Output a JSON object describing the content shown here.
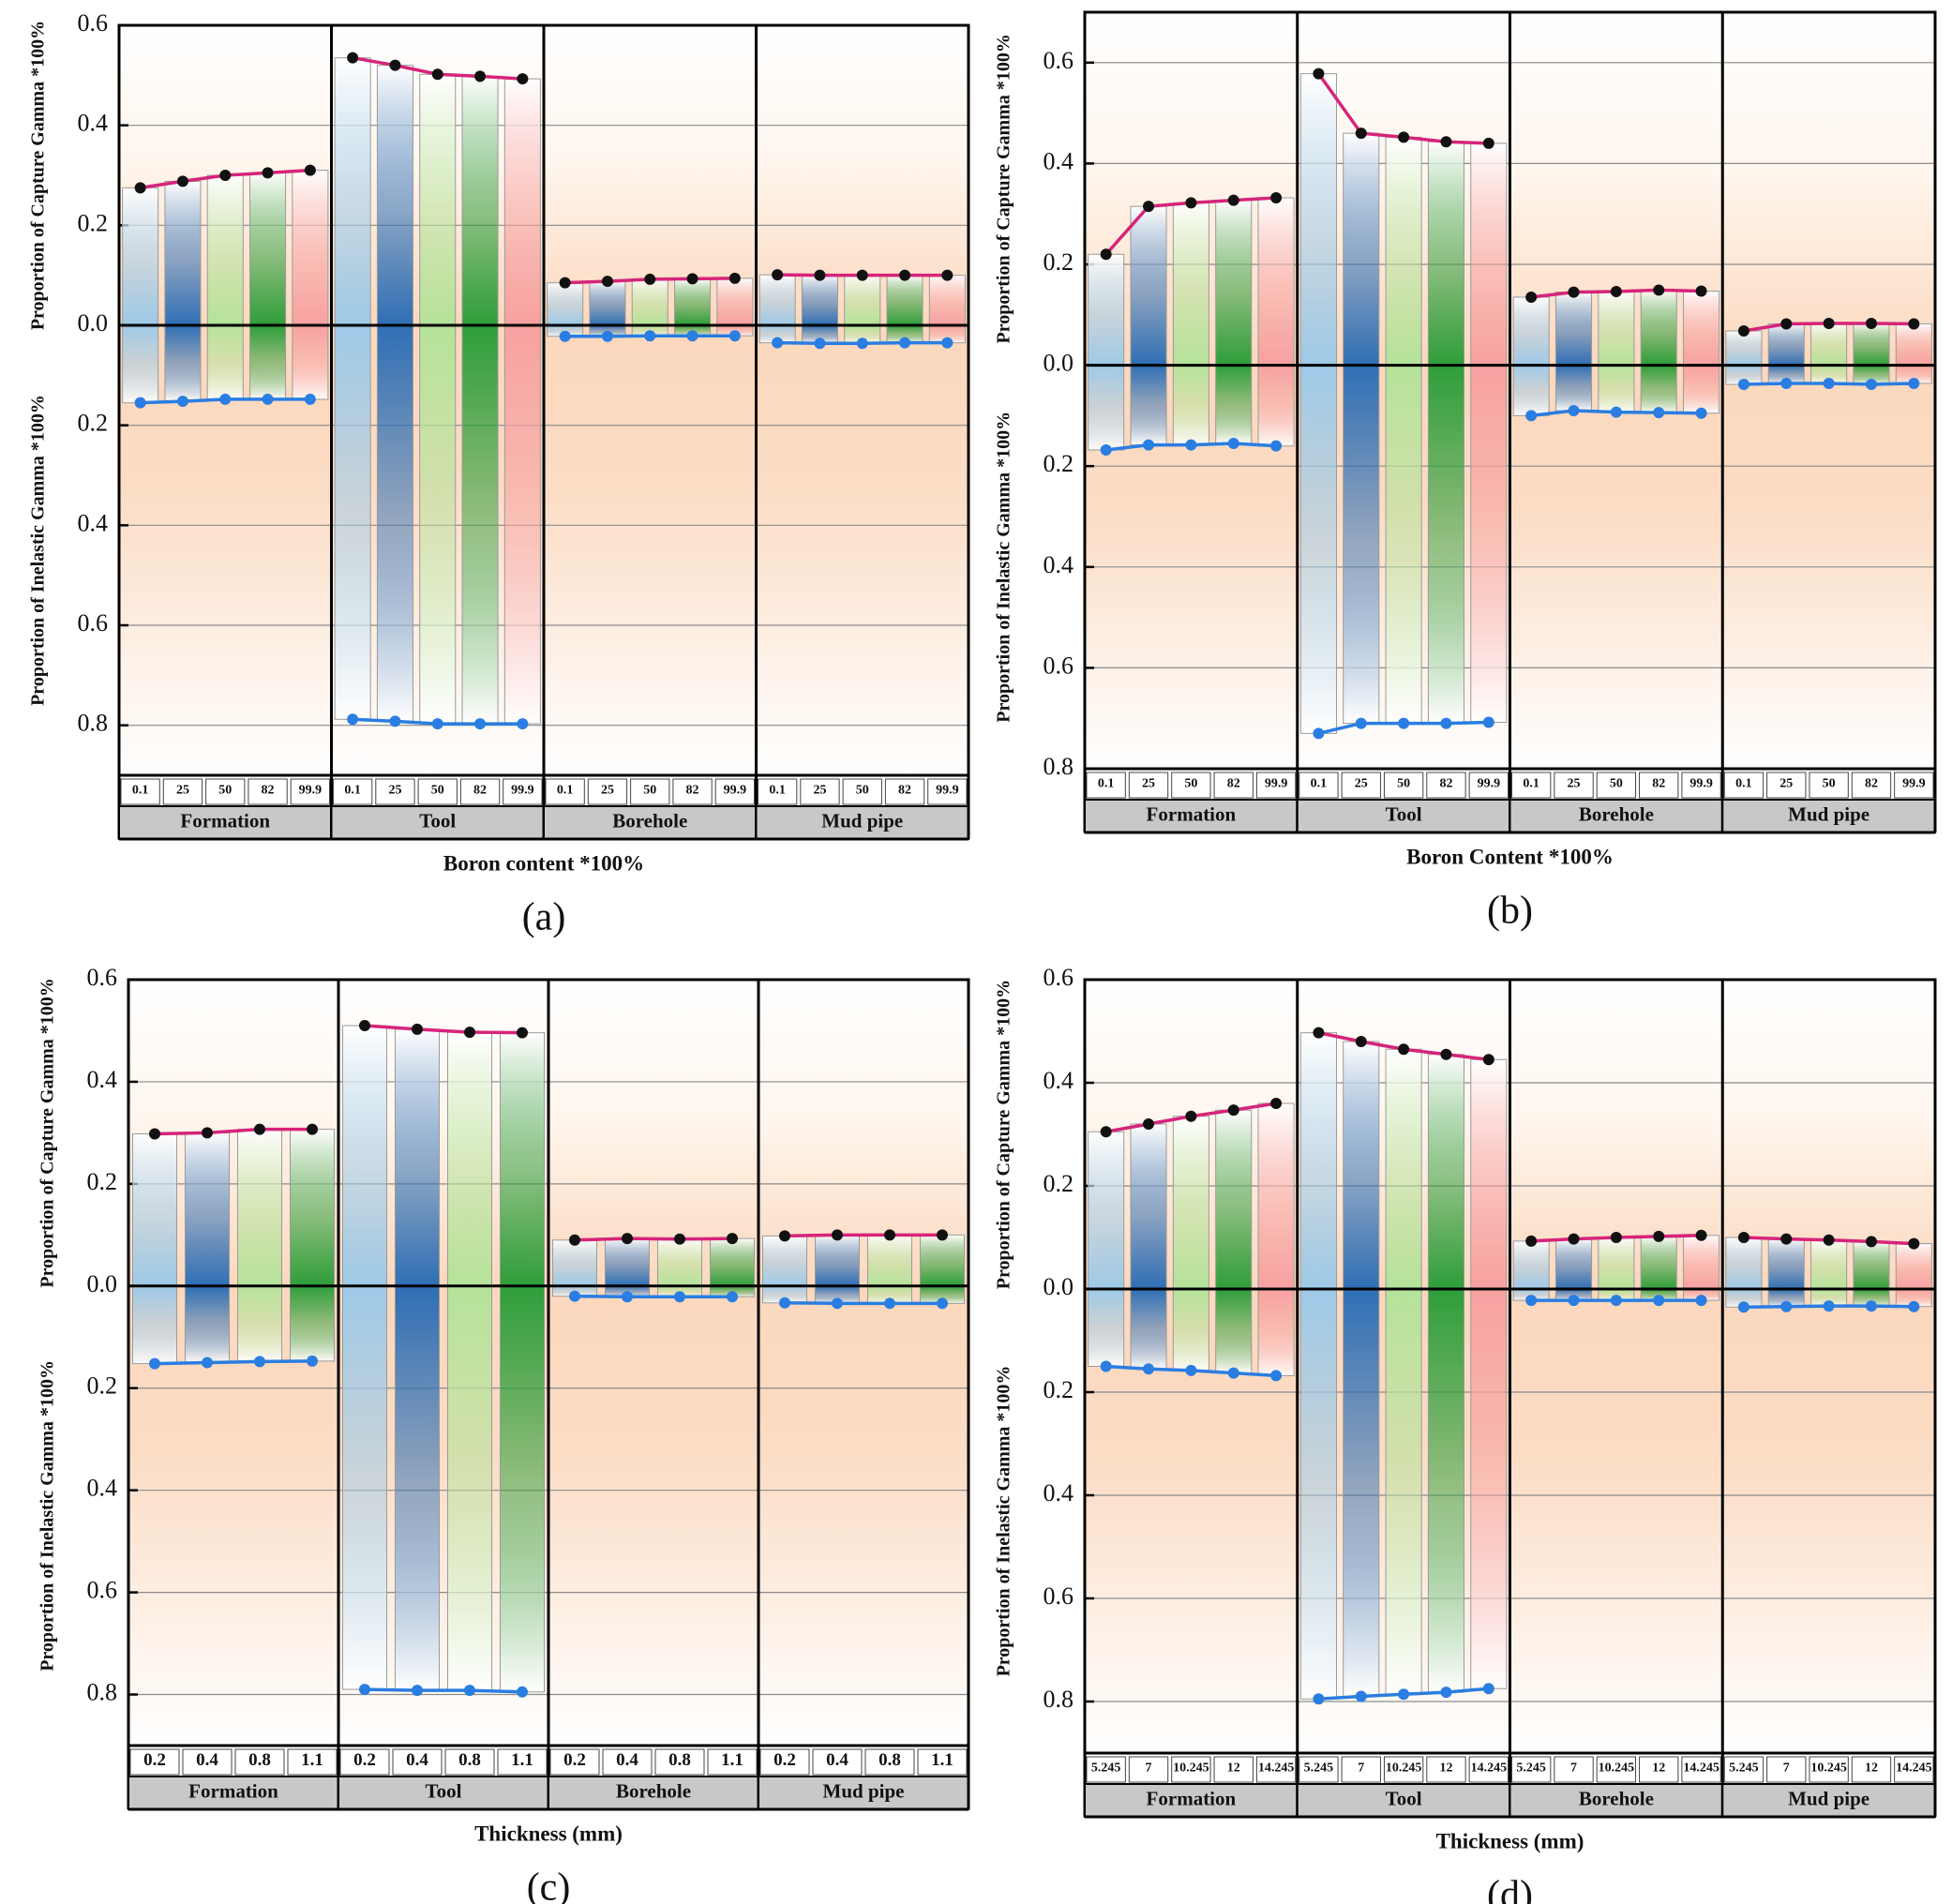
{
  "chart_data": [
    {
      "type": "bar",
      "label": "(a)",
      "y_label": "Proportion of Capture Gamma *100%",
      "y2_label": "Proportion of Inelastic Gamma *100%",
      "x_label": "Boron content *100%",
      "groups": [
        "Formation",
        "Tool",
        "Borehole",
        "Mud pipe"
      ],
      "categories": [
        "0.1",
        "25",
        "50",
        "82",
        "99.9"
      ],
      "category_colors": [
        "#9ecae8",
        "#2f6fb5",
        "#b5e39a",
        "#2e9e3a",
        "#f7a1a1"
      ],
      "ylim": [
        0,
        0.6
      ],
      "yticks": [
        {
          "value": 0,
          "label": "0.0"
        },
        0.2,
        0.4,
        0.6
      ],
      "y2lim": [
        0,
        0.9
      ],
      "y2ticks": [
        0.2,
        0.4,
        0.6,
        0.8
      ],
      "grid": true,
      "series": [
        {
          "color": "#d6247a",
          "marker_color": "#111111",
          "values": [
            [
              0.275,
              0.288,
              0.3,
              0.305,
              0.31
            ],
            [
              0.535,
              0.52,
              0.502,
              0.498,
              0.493
            ],
            [
              0.085,
              0.088,
              0.092,
              0.093,
              0.094
            ],
            [
              0.101,
              0.1,
              0.1,
              0.1,
              0.1
            ]
          ]
        },
        {
          "axis": "y2",
          "color": "#2a7de1",
          "marker_color": "#2a7de1",
          "values": [
            [
              0.155,
              0.152,
              0.148,
              0.148,
              0.148
            ],
            [
              0.788,
              0.792,
              0.797,
              0.797,
              0.797
            ],
            [
              0.022,
              0.022,
              0.021,
              0.021,
              0.021
            ],
            [
              0.035,
              0.036,
              0.036,
              0.035,
              0.035
            ]
          ]
        }
      ]
    },
    {
      "type": "bar",
      "label": "(b)",
      "y_label": "Proportion of Capture Gamma *100%",
      "y2_label": "Proportion of Inelastic Gamma *100%",
      "x_label": "Boron Content *100%",
      "groups": [
        "Formation",
        "Tool",
        "Borehole",
        "Mud pipe"
      ],
      "categories": [
        "0.1",
        "25",
        "50",
        "82",
        "99.9"
      ],
      "category_colors": [
        "#9ecae8",
        "#2f6fb5",
        "#b5e39a",
        "#2e9e3a",
        "#f7a1a1"
      ],
      "ylim": [
        0,
        0.7
      ],
      "yticks": [
        {
          "value": 0,
          "label": "0.0"
        },
        0.2,
        0.4,
        0.6
      ],
      "y2lim": [
        0,
        0.8
      ],
      "y2ticks": [
        0.2,
        0.4,
        0.6,
        0.8
      ],
      "grid": true,
      "series": [
        {
          "color": "#d6247a",
          "marker_color": "#111111",
          "values": [
            [
              0.22,
              0.315,
              0.322,
              0.327,
              0.332
            ],
            [
              0.578,
              0.46,
              0.452,
              0.443,
              0.44
            ],
            [
              0.135,
              0.145,
              0.146,
              0.149,
              0.147
            ],
            [
              0.068,
              0.082,
              0.083,
              0.083,
              0.082
            ]
          ]
        },
        {
          "axis": "y2",
          "color": "#2a7de1",
          "marker_color": "#2a7de1",
          "values": [
            [
              0.168,
              0.158,
              0.158,
              0.155,
              0.16
            ],
            [
              0.73,
              0.71,
              0.71,
              0.71,
              0.708
            ],
            [
              0.1,
              0.09,
              0.093,
              0.094,
              0.095
            ],
            [
              0.038,
              0.036,
              0.036,
              0.038,
              0.036
            ]
          ]
        }
      ]
    },
    {
      "type": "bar",
      "label": "(c)",
      "y_label": "Proportion of Capture Gamma *100%",
      "y2_label": "Proportion of Inelastic Gamma *100%",
      "x_label": "Thickness (mm)",
      "groups": [
        "Formation",
        "Tool",
        "Borehole",
        "Mud pipe"
      ],
      "categories": [
        "0.2",
        "0.4",
        "0.8",
        "1.1"
      ],
      "category_colors": [
        "#9ecae8",
        "#2f6fb5",
        "#b5e39a",
        "#2e9e3a"
      ],
      "ylim": [
        0,
        0.6
      ],
      "yticks": [
        {
          "value": 0,
          "label": "0.0"
        },
        0.2,
        0.4,
        0.6
      ],
      "y2lim": [
        0,
        0.9
      ],
      "y2ticks": [
        0.2,
        0.4,
        0.6,
        0.8
      ],
      "grid": true,
      "series": [
        {
          "color": "#d6247a",
          "marker_color": "#111111",
          "values": [
            [
              0.298,
              0.3,
              0.307,
              0.307
            ],
            [
              0.51,
              0.503,
              0.497,
              0.496
            ],
            [
              0.09,
              0.093,
              0.092,
              0.093
            ],
            [
              0.098,
              0.1,
              0.1,
              0.1
            ]
          ]
        },
        {
          "axis": "y2",
          "color": "#2a7de1",
          "marker_color": "#2a7de1",
          "values": [
            [
              0.152,
              0.15,
              0.148,
              0.147
            ],
            [
              0.79,
              0.792,
              0.792,
              0.795
            ],
            [
              0.02,
              0.021,
              0.021,
              0.021
            ],
            [
              0.033,
              0.034,
              0.034,
              0.034
            ]
          ]
        }
      ]
    },
    {
      "type": "bar",
      "label": "(d)",
      "y_label": "Proportion of Capture Gamma *100%",
      "y2_label": "Proportion of Inelastic Gamma *100%",
      "x_label": "Thickness (mm)",
      "groups": [
        "Formation",
        "Tool",
        "Borehole",
        "Mud pipe"
      ],
      "categories": [
        "5.245",
        "7",
        "10.245",
        "12",
        "14.245"
      ],
      "category_colors": [
        "#9ecae8",
        "#2f6fb5",
        "#b5e39a",
        "#2e9e3a",
        "#f7a1a1"
      ],
      "ylim": [
        0,
        0.6
      ],
      "yticks": [
        {
          "value": 0,
          "label": "0.0"
        },
        0.2,
        0.4,
        0.6
      ],
      "y2lim": [
        0,
        0.9
      ],
      "y2ticks": [
        0.2,
        0.4,
        0.6,
        0.8
      ],
      "grid": true,
      "series": [
        {
          "color": "#d6247a",
          "marker_color": "#111111",
          "values": [
            [
              0.305,
              0.32,
              0.335,
              0.347,
              0.36
            ],
            [
              0.497,
              0.48,
              0.465,
              0.455,
              0.445
            ],
            [
              0.093,
              0.097,
              0.1,
              0.102,
              0.104
            ],
            [
              0.1,
              0.097,
              0.095,
              0.092,
              0.088
            ]
          ]
        },
        {
          "axis": "y2",
          "color": "#2a7de1",
          "marker_color": "#2a7de1",
          "values": [
            [
              0.15,
              0.155,
              0.158,
              0.163,
              0.168
            ],
            [
              0.795,
              0.79,
              0.786,
              0.782,
              0.775
            ],
            [
              0.022,
              0.022,
              0.022,
              0.022,
              0.022
            ],
            [
              0.035,
              0.034,
              0.033,
              0.033,
              0.034
            ]
          ]
        }
      ]
    }
  ]
}
